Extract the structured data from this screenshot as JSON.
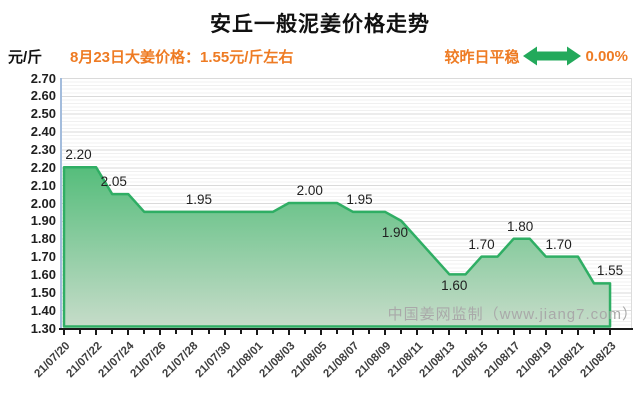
{
  "header": {
    "title": "安丘一般泥姜价格走势",
    "unit_label": "元/斤",
    "subtitle": "8月23日大姜价格：1.55元/斤左右",
    "trend_label": "较昨日平稳",
    "trend_value": "0.00%",
    "trend_icon": "left-right-flat-arrow",
    "colors": {
      "accent_orange": "#ee7b23",
      "arrow_green": "#23a95b",
      "title_black": "#111111"
    }
  },
  "watermark": "中国姜网监制（www.jiang7.com）",
  "chart_data": {
    "type": "area",
    "title": "安丘一般泥姜价格走势",
    "xlabel": "",
    "ylabel": "元/斤",
    "ylim": [
      1.3,
      2.7
    ],
    "y_tick_step": 0.1,
    "grid": true,
    "legend": "none",
    "y_ticks": [
      "2.70",
      "2.60",
      "2.50",
      "2.40",
      "2.30",
      "2.20",
      "2.10",
      "2.00",
      "1.90",
      "1.80",
      "1.70",
      "1.60",
      "1.50",
      "1.40",
      "1.30"
    ],
    "x": [
      "21/07/20",
      "21/07/21",
      "21/07/22",
      "21/07/23",
      "21/07/24",
      "21/07/25",
      "21/07/26",
      "21/07/27",
      "21/07/28",
      "21/07/29",
      "21/07/30",
      "21/07/31",
      "21/08/01",
      "21/08/02",
      "21/08/03",
      "21/08/04",
      "21/08/05",
      "21/08/06",
      "21/08/07",
      "21/08/08",
      "21/08/09",
      "21/08/10",
      "21/08/11",
      "21/08/12",
      "21/08/13",
      "21/08/14",
      "21/08/15",
      "21/08/16",
      "21/08/17",
      "21/08/18",
      "21/08/19",
      "21/08/20",
      "21/08/21",
      "21/08/22",
      "21/08/23"
    ],
    "values": [
      2.2,
      2.2,
      2.2,
      2.05,
      2.05,
      1.95,
      1.95,
      1.95,
      1.95,
      1.95,
      1.95,
      1.95,
      1.95,
      1.95,
      2.0,
      2.0,
      2.0,
      2.0,
      1.95,
      1.95,
      1.95,
      1.9,
      1.8,
      1.7,
      1.6,
      1.6,
      1.7,
      1.7,
      1.8,
      1.8,
      1.7,
      1.7,
      1.7,
      1.55,
      1.55
    ],
    "x_tick_labels": [
      "21/07/20",
      "21/07/22",
      "21/07/24",
      "21/07/26",
      "21/07/28",
      "21/07/30",
      "21/08/01",
      "21/08/03",
      "21/08/05",
      "21/08/07",
      "21/08/09",
      "21/08/11",
      "21/08/13",
      "21/08/15",
      "21/08/17",
      "21/08/19",
      "21/08/21",
      "21/08/23"
    ],
    "point_labels": [
      {
        "text": "2.20",
        "day": 0.9,
        "side": "above"
      },
      {
        "text": "2.05",
        "day": 3.1,
        "side": "above"
      },
      {
        "text": "1.95",
        "day": 8.4,
        "side": "above"
      },
      {
        "text": "2.00",
        "day": 15.3,
        "side": "above"
      },
      {
        "text": "1.95",
        "day": 18.4,
        "side": "above"
      },
      {
        "text": "1.90",
        "day": 20.6,
        "side": "below"
      },
      {
        "text": "1.60",
        "day": 24.3,
        "side": "below"
      },
      {
        "text": "1.70",
        "day": 26.0,
        "side": "above"
      },
      {
        "text": "1.80",
        "day": 28.4,
        "side": "above"
      },
      {
        "text": "1.70",
        "day": 30.8,
        "side": "above"
      },
      {
        "text": "1.55",
        "day": 34.0,
        "side": "above"
      }
    ],
    "line_color": "#2fae64",
    "fill_top": "#55bd7b",
    "fill_bottom": "#c6dcc9",
    "axis_color_y": "#a3bcdc",
    "axis_color_x": "#1a1a1a",
    "gridline_color": "#dadada"
  }
}
